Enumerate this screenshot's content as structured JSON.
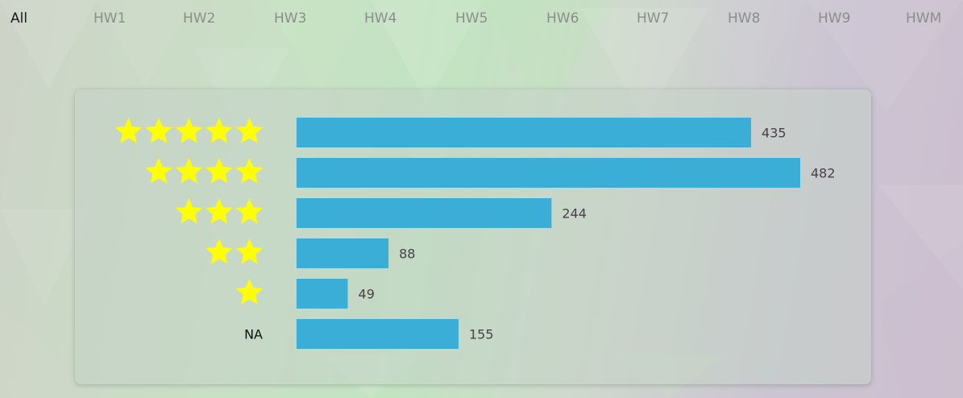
{
  "nav": {
    "tabs": [
      {
        "label": "All",
        "active": true
      },
      {
        "label": "HW1",
        "active": false
      },
      {
        "label": "HW2",
        "active": false
      },
      {
        "label": "HW3",
        "active": false
      },
      {
        "label": "HW4",
        "active": false
      },
      {
        "label": "HW5",
        "active": false
      },
      {
        "label": "HW6",
        "active": false
      },
      {
        "label": "HW7",
        "active": false
      },
      {
        "label": "HW8",
        "active": false
      },
      {
        "label": "HW9",
        "active": false
      },
      {
        "label": "HWM",
        "active": false
      }
    ]
  },
  "colors": {
    "bar": "#3aaed6",
    "star": "#ffff00",
    "active_tab": "#1a1a1a",
    "inactive_tab": "#8a8f8a"
  },
  "chart_data": {
    "type": "bar",
    "orientation": "horizontal",
    "categories": [
      {
        "stars": 5,
        "label": ""
      },
      {
        "stars": 4,
        "label": ""
      },
      {
        "stars": 3,
        "label": ""
      },
      {
        "stars": 2,
        "label": ""
      },
      {
        "stars": 1,
        "label": ""
      },
      {
        "stars": 0,
        "label": "NA"
      }
    ],
    "values": [
      435,
      482,
      244,
      88,
      49,
      155
    ],
    "value_labels": [
      "435",
      "482",
      "244",
      "88",
      "49",
      "155"
    ],
    "xlim": [
      0,
      482
    ],
    "grid": false,
    "legend": "none"
  }
}
